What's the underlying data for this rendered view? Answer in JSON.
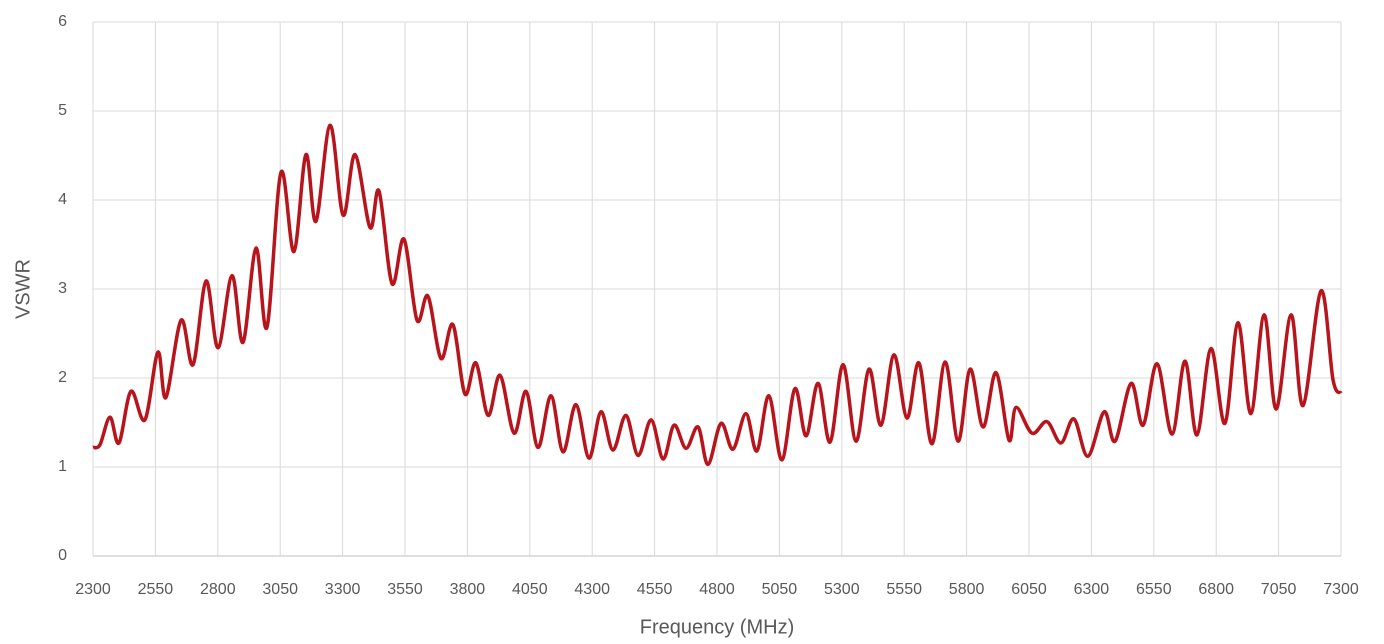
{
  "chart_data": {
    "type": "line",
    "x_label": "Frequency (MHz)",
    "y_label": "VSWR",
    "x": [
      2300,
      2328,
      2368,
      2404,
      2452,
      2508,
      2560,
      2592,
      2653,
      2701,
      2753,
      2801,
      2857,
      2901,
      2953,
      2997,
      3053,
      3105,
      3153,
      3193,
      3250,
      3302,
      3350,
      3410,
      3446,
      3498,
      3546,
      3598,
      3642,
      3694,
      3742,
      3790,
      3834,
      3883,
      3931,
      3987,
      4035,
      4083,
      4135,
      4183,
      4235,
      4287,
      4335,
      4383,
      4435,
      4484,
      4536,
      4584,
      4628,
      4676,
      4724,
      4764,
      4816,
      4864,
      4916,
      4960,
      5008,
      5060,
      5112,
      5157,
      5205,
      5253,
      5305,
      5357,
      5409,
      5457,
      5509,
      5561,
      5609,
      5661,
      5714,
      5766,
      5814,
      5866,
      5918,
      5970,
      5998,
      6062,
      6122,
      6178,
      6230,
      6286,
      6351,
      6395,
      6459,
      6507,
      6563,
      6623,
      6675,
      6723,
      6779,
      6835,
      6887,
      6939,
      6992,
      7040,
      7100,
      7148,
      7220,
      7268,
      7300
    ],
    "series": [
      {
        "name": "VSWR",
        "color": "#b8141c",
        "values": [
          1.22,
          1.25,
          1.56,
          1.27,
          1.85,
          1.53,
          2.29,
          1.78,
          2.65,
          2.15,
          3.09,
          2.34,
          3.15,
          2.4,
          3.46,
          2.57,
          4.31,
          3.42,
          4.51,
          3.76,
          4.84,
          3.83,
          4.51,
          3.69,
          4.1,
          3.06,
          3.56,
          2.65,
          2.92,
          2.22,
          2.6,
          1.82,
          2.17,
          1.58,
          2.03,
          1.38,
          1.85,
          1.22,
          1.8,
          1.17,
          1.7,
          1.1,
          1.62,
          1.19,
          1.58,
          1.13,
          1.53,
          1.09,
          1.47,
          1.21,
          1.45,
          1.03,
          1.49,
          1.2,
          1.6,
          1.18,
          1.8,
          1.08,
          1.88,
          1.35,
          1.94,
          1.28,
          2.15,
          1.29,
          2.1,
          1.47,
          2.26,
          1.55,
          2.17,
          1.26,
          2.18,
          1.29,
          2.1,
          1.45,
          2.06,
          1.3,
          1.67,
          1.38,
          1.51,
          1.27,
          1.54,
          1.12,
          1.62,
          1.29,
          1.94,
          1.47,
          2.16,
          1.37,
          2.19,
          1.36,
          2.33,
          1.49,
          2.62,
          1.6,
          2.71,
          1.65,
          2.71,
          1.69,
          2.98,
          1.98,
          1.83
        ]
      }
    ],
    "xlim": [
      2300,
      7300
    ],
    "xticks": [
      2300,
      2550,
      2800,
      3050,
      3300,
      3550,
      3800,
      4050,
      4300,
      4550,
      4800,
      5050,
      5300,
      5550,
      5800,
      6050,
      6300,
      6550,
      6800,
      7050,
      7300
    ],
    "ylim": [
      0,
      6
    ],
    "yticks": [
      0,
      1,
      2,
      3,
      4,
      5,
      6
    ],
    "grid": true
  }
}
